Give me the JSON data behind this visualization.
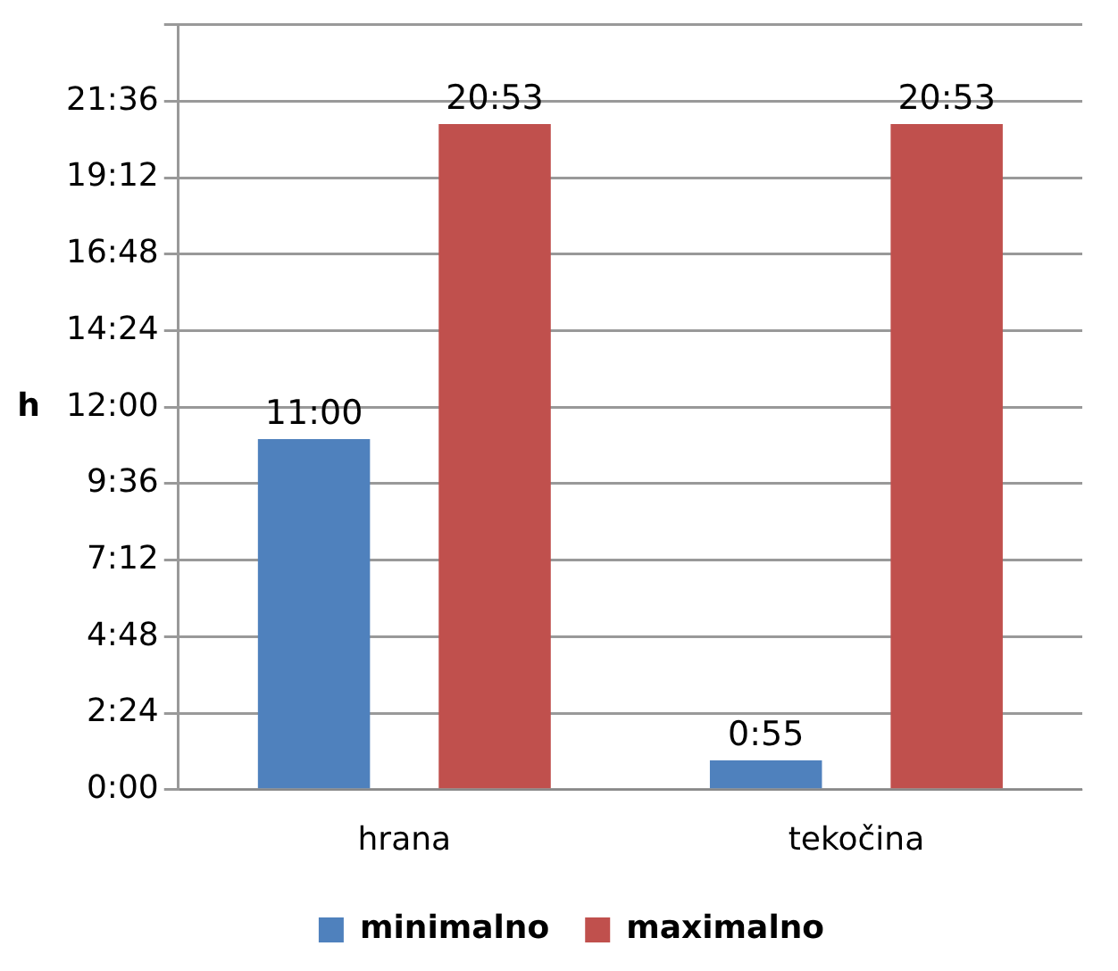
{
  "chart_data": {
    "type": "bar",
    "ylabel": "h",
    "categories": [
      "hrana",
      "tekočina"
    ],
    "series": [
      {
        "name": "minimalno",
        "color": "#4f81bd",
        "values": [
          11,
          0.92
        ],
        "value_labels": [
          "11:00",
          "0:55"
        ]
      },
      {
        "name": "maximalno",
        "color": "#c0504d",
        "values": [
          20.88,
          20.88
        ],
        "value_labels": [
          "20:53",
          "20:53"
        ]
      }
    ],
    "ylim": [
      0,
      24
    ],
    "yticks": [
      {
        "value": 0,
        "label": "0:00"
      },
      {
        "value": 2.4,
        "label": "2:24"
      },
      {
        "value": 4.8,
        "label": "4:48"
      },
      {
        "value": 7.2,
        "label": "7:12"
      },
      {
        "value": 9.6,
        "label": "9:36"
      },
      {
        "value": 12,
        "label": "12:00"
      },
      {
        "value": 14.4,
        "label": "14:24"
      },
      {
        "value": 16.8,
        "label": "16:48"
      },
      {
        "value": 19.2,
        "label": "19:12"
      },
      {
        "value": 21.6,
        "label": "21:36"
      },
      {
        "value": 24,
        "label": null
      }
    ],
    "grid": "y",
    "legend": "bottom"
  }
}
